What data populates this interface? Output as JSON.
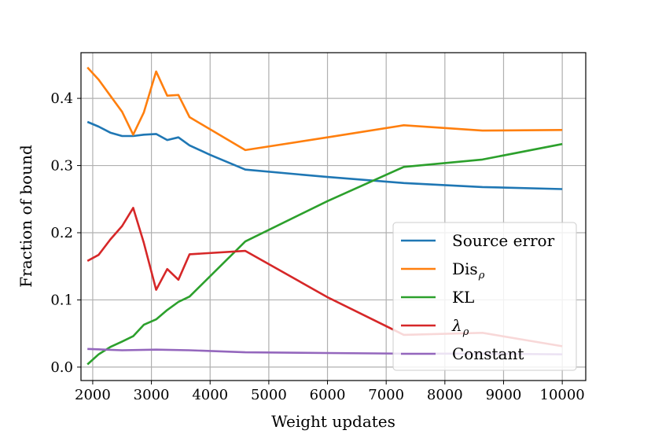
{
  "chart_data": {
    "type": "line",
    "xlabel": "Weight updates",
    "ylabel": "Fraction of bound",
    "xlim": [
      1800,
      10400
    ],
    "ylim": [
      -0.02,
      0.468
    ],
    "xticks": [
      2000,
      3000,
      4000,
      5000,
      6000,
      7000,
      8000,
      9000,
      10000
    ],
    "yticks": [
      0.0,
      0.1,
      0.2,
      0.3,
      0.4
    ],
    "ytick_labels": [
      "0.0",
      "0.1",
      "0.2",
      "0.3",
      "0.4"
    ],
    "grid": true,
    "legend_position": "lower-right",
    "series": [
      {
        "name": "Source error",
        "color": "#1f77b4",
        "x": [
          1910,
          2100,
          2300,
          2500,
          2690,
          2870,
          3080,
          3270,
          3460,
          3650,
          4000,
          4600,
          6000,
          7300,
          8640,
          10000
        ],
        "y": [
          0.365,
          0.358,
          0.349,
          0.344,
          0.344,
          0.346,
          0.347,
          0.338,
          0.342,
          0.33,
          0.316,
          0.294,
          0.283,
          0.274,
          0.268,
          0.265
        ]
      },
      {
        "name": "Dis",
        "name_sub": "ρ",
        "color": "#ff7f0e",
        "x": [
          1910,
          2100,
          2300,
          2500,
          2690,
          2870,
          3080,
          3270,
          3460,
          3650,
          4600,
          6000,
          7300,
          8640,
          10000
        ],
        "y": [
          0.446,
          0.428,
          0.404,
          0.38,
          0.346,
          0.379,
          0.44,
          0.404,
          0.405,
          0.372,
          0.323,
          0.342,
          0.36,
          0.352,
          0.353
        ]
      },
      {
        "name": "KL",
        "color": "#2ca02c",
        "x": [
          1910,
          2100,
          2300,
          2500,
          2690,
          2870,
          3080,
          3270,
          3460,
          3650,
          4600,
          6000,
          7300,
          8640,
          10000
        ],
        "y": [
          0.004,
          0.019,
          0.03,
          0.038,
          0.046,
          0.063,
          0.071,
          0.085,
          0.097,
          0.105,
          0.187,
          0.247,
          0.298,
          0.309,
          0.332
        ]
      },
      {
        "name": "λ",
        "name_sub": "ρ",
        "color": "#d62728",
        "x": [
          1910,
          2100,
          2300,
          2500,
          2690,
          2870,
          3080,
          3270,
          3460,
          3650,
          4600,
          6000,
          7300,
          8640,
          10000
        ],
        "y": [
          0.158,
          0.167,
          0.19,
          0.21,
          0.237,
          0.185,
          0.115,
          0.146,
          0.13,
          0.168,
          0.173,
          0.104,
          0.048,
          0.051,
          0.031
        ]
      },
      {
        "name": "Constant",
        "color": "#9467bd",
        "x": [
          1910,
          2500,
          3080,
          3650,
          4600,
          6000,
          7300,
          8640,
          10000
        ],
        "y": [
          0.027,
          0.025,
          0.026,
          0.025,
          0.022,
          0.021,
          0.02,
          0.02,
          0.019
        ]
      }
    ]
  }
}
